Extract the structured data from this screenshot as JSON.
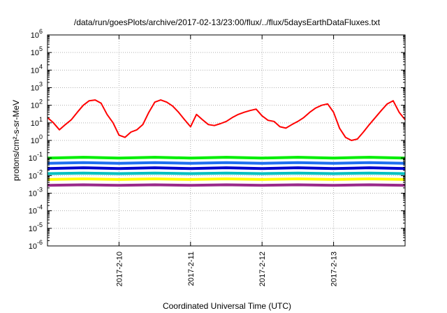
{
  "chart_data": {
    "type": "line",
    "title": "/data/run/goesPlots/archive/2017-02-13/23:00/flux/../flux/5daysEarthDataFluxes.txt",
    "xlabel": "Coordinated Universal Time (UTC)",
    "ylabel": "protons/cm²-s-sr-MeV",
    "yscale": "log",
    "ylim": [
      1e-06,
      1000000.0
    ],
    "xlim": [
      "2017-02-09T00:00",
      "2017-02-14T00:00"
    ],
    "x_tick_labels": [
      "2017-2-10",
      "2017-2-11",
      "2017-2-12",
      "2017-2-13"
    ],
    "y_tick_exponents": [
      "-6",
      "-5",
      "-4",
      "-3",
      "-2",
      "-1",
      "0",
      "1",
      "2",
      "3",
      "4",
      "5",
      "6"
    ],
    "grid": true,
    "series": [
      {
        "color": "#ff0000",
        "x": [
          "2017-02-09T00:00",
          "2017-02-09T02:00",
          "2017-02-09T04:00",
          "2017-02-09T06:00",
          "2017-02-09T08:00",
          "2017-02-09T10:00",
          "2017-02-09T12:00",
          "2017-02-09T14:00",
          "2017-02-09T16:00",
          "2017-02-09T18:00",
          "2017-02-09T20:00",
          "2017-02-09T22:00",
          "2017-02-10T00:00",
          "2017-02-10T02:00",
          "2017-02-10T04:00",
          "2017-02-10T06:00",
          "2017-02-10T08:00",
          "2017-02-10T10:00",
          "2017-02-10T12:00",
          "2017-02-10T14:00",
          "2017-02-10T16:00",
          "2017-02-10T18:00",
          "2017-02-10T20:00",
          "2017-02-10T22:00",
          "2017-02-11T00:00",
          "2017-02-11T02:00",
          "2017-02-11T04:00",
          "2017-02-11T06:00",
          "2017-02-11T08:00",
          "2017-02-11T10:00",
          "2017-02-11T12:00",
          "2017-02-11T14:00",
          "2017-02-11T16:00",
          "2017-02-11T18:00",
          "2017-02-11T20:00",
          "2017-02-11T22:00",
          "2017-02-12T00:00",
          "2017-02-12T02:00",
          "2017-02-12T04:00",
          "2017-02-12T06:00",
          "2017-02-12T08:00",
          "2017-02-12T10:00",
          "2017-02-12T12:00",
          "2017-02-12T14:00",
          "2017-02-12T16:00",
          "2017-02-12T18:00",
          "2017-02-12T20:00",
          "2017-02-12T22:00",
          "2017-02-13T00:00",
          "2017-02-13T02:00",
          "2017-02-13T04:00",
          "2017-02-13T06:00",
          "2017-02-13T08:00",
          "2017-02-13T10:00",
          "2017-02-13T12:00",
          "2017-02-13T14:00",
          "2017-02-13T16:00",
          "2017-02-13T18:00",
          "2017-02-13T20:00",
          "2017-02-13T22:00",
          "2017-02-14T00:00"
        ],
        "y": [
          20,
          10,
          4,
          8,
          15,
          40,
          100,
          180,
          200,
          130,
          30,
          10,
          2,
          1.5,
          3,
          4,
          8,
          40,
          150,
          200,
          150,
          90,
          40,
          15,
          6,
          30,
          15,
          8,
          7,
          9,
          12,
          20,
          30,
          40,
          50,
          60,
          25,
          14,
          12,
          6,
          5,
          8,
          12,
          20,
          40,
          70,
          100,
          120,
          40,
          5,
          1.5,
          1,
          1.2,
          3,
          8,
          20,
          50,
          120,
          180,
          40,
          15
        ]
      },
      {
        "color": "#00ee00",
        "x": [
          "2017-02-09T00:00",
          "2017-02-09T12:00",
          "2017-02-10T00:00",
          "2017-02-10T12:00",
          "2017-02-11T00:00",
          "2017-02-11T12:00",
          "2017-02-12T00:00",
          "2017-02-12T12:00",
          "2017-02-13T00:00",
          "2017-02-13T12:00",
          "2017-02-14T00:00"
        ],
        "y": [
          0.1,
          0.11,
          0.1,
          0.11,
          0.1,
          0.11,
          0.1,
          0.11,
          0.1,
          0.11,
          0.1
        ]
      },
      {
        "color": "#1e6ff0",
        "x": [
          "2017-02-09T00:00",
          "2017-02-09T12:00",
          "2017-02-10T00:00",
          "2017-02-10T12:00",
          "2017-02-11T00:00",
          "2017-02-11T12:00",
          "2017-02-12T00:00",
          "2017-02-12T12:00",
          "2017-02-13T00:00",
          "2017-02-13T12:00",
          "2017-02-14T00:00"
        ],
        "y": [
          0.05,
          0.055,
          0.05,
          0.055,
          0.05,
          0.055,
          0.05,
          0.055,
          0.05,
          0.055,
          0.05
        ]
      },
      {
        "color": "#0000cc",
        "x": [
          "2017-02-09T00:00",
          "2017-02-09T12:00",
          "2017-02-10T00:00",
          "2017-02-10T12:00",
          "2017-02-11T00:00",
          "2017-02-11T12:00",
          "2017-02-12T00:00",
          "2017-02-12T12:00",
          "2017-02-13T00:00",
          "2017-02-13T12:00",
          "2017-02-14T00:00"
        ],
        "y": [
          0.025,
          0.028,
          0.025,
          0.028,
          0.025,
          0.028,
          0.025,
          0.028,
          0.025,
          0.028,
          0.025
        ]
      },
      {
        "color": "#00c0c0",
        "x": [
          "2017-02-09T00:00",
          "2017-02-09T12:00",
          "2017-02-10T00:00",
          "2017-02-10T12:00",
          "2017-02-11T00:00",
          "2017-02-11T12:00",
          "2017-02-12T00:00",
          "2017-02-12T12:00",
          "2017-02-13T00:00",
          "2017-02-13T12:00",
          "2017-02-14T00:00"
        ],
        "y": [
          0.013,
          0.014,
          0.013,
          0.014,
          0.013,
          0.014,
          0.013,
          0.014,
          0.013,
          0.014,
          0.013
        ]
      },
      {
        "color": "#ffff00",
        "x": [
          "2017-02-09T00:00",
          "2017-02-09T12:00",
          "2017-02-10T00:00",
          "2017-02-10T12:00",
          "2017-02-11T00:00",
          "2017-02-11T12:00",
          "2017-02-12T00:00",
          "2017-02-12T12:00",
          "2017-02-13T00:00",
          "2017-02-13T12:00",
          "2017-02-14T00:00"
        ],
        "y": [
          0.006,
          0.0065,
          0.006,
          0.0065,
          0.006,
          0.0065,
          0.006,
          0.0065,
          0.006,
          0.0065,
          0.006
        ]
      },
      {
        "color": "#9a2a8a",
        "x": [
          "2017-02-09T00:00",
          "2017-02-09T12:00",
          "2017-02-10T00:00",
          "2017-02-10T12:00",
          "2017-02-11T00:00",
          "2017-02-11T12:00",
          "2017-02-12T00:00",
          "2017-02-12T12:00",
          "2017-02-13T00:00",
          "2017-02-13T12:00",
          "2017-02-14T00:00"
        ],
        "y": [
          0.0028,
          0.003,
          0.0028,
          0.003,
          0.0028,
          0.003,
          0.0028,
          0.003,
          0.0028,
          0.003,
          0.0028
        ]
      }
    ]
  }
}
